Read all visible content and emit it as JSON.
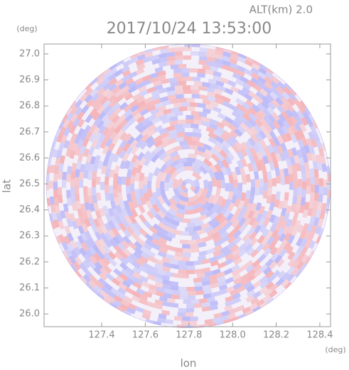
{
  "chart_data": {
    "type": "radar-ppi",
    "title": "2017/10/24 13:53:00",
    "altitude_label": "ALT(km) 2.0",
    "xlabel": "lon",
    "ylabel": "lat",
    "x_unit": "(deg)",
    "y_unit": "(deg)",
    "xlim": [
      127.136,
      128.449
    ],
    "ylim": [
      25.951,
      27.038
    ],
    "xticks": [
      127.4,
      127.6,
      127.8,
      {
        "value": 128.0,
        "label": "128.0"
      },
      128.2,
      128.4
    ],
    "yticks": [
      {
        "value": 26.0,
        "label": "26.0"
      },
      26.1,
      26.2,
      26.3,
      26.4,
      26.5,
      26.6,
      26.7,
      26.8,
      26.9,
      {
        "value": 27.0,
        "label": "27.0"
      }
    ]
  }
}
